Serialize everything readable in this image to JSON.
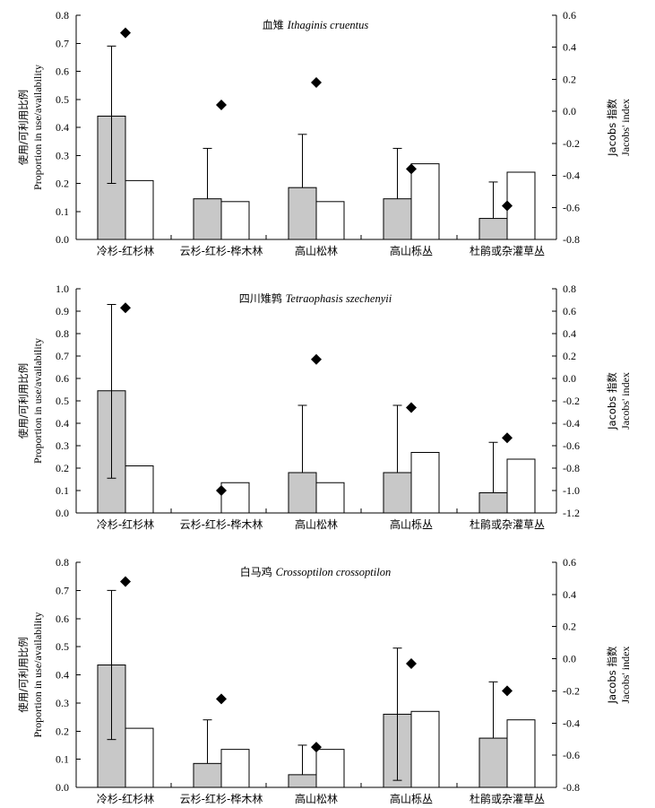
{
  "left_axis_label": {
    "cn": "使用/可利用比例",
    "en": "Proportion in use/availability"
  },
  "right_axis_label": {
    "cn": "Jacobs 指数",
    "en": "Jacobs' index"
  },
  "chart_data": [
    {
      "type": "bar",
      "title": {
        "cn": "血雉",
        "sci": "Ithaginis cruentus"
      },
      "categories": [
        "冷杉-红杉林",
        "云杉-红杉-桦木林",
        "高山松林",
        "高山栎丛",
        "杜鹃或杂灌草丛"
      ],
      "series": [
        {
          "name": "use",
          "values": [
            0.44,
            0.145,
            0.185,
            0.145,
            0.075
          ]
        },
        {
          "name": "availability",
          "values": [
            0.21,
            0.135,
            0.135,
            0.27,
            0.24
          ]
        },
        {
          "name": "use_error_upper",
          "values": [
            0.69,
            0.325,
            0.375,
            0.325,
            0.205
          ]
        },
        {
          "name": "use_error_lower",
          "values": [
            0.2,
            null,
            null,
            null,
            null
          ]
        },
        {
          "name": "Jacobs' index",
          "axis": "right",
          "values": [
            0.49,
            0.04,
            0.18,
            -0.36,
            -0.59
          ]
        }
      ],
      "ylim": [
        0,
        0.8
      ],
      "yticks": [
        "0.0",
        "0.1",
        "0.2",
        "0.3",
        "0.4",
        "0.5",
        "0.6",
        "0.7",
        "0.8"
      ],
      "y2lim": [
        -0.8,
        0.6
      ],
      "y2ticks": [
        "0.6",
        "0.4",
        "0.2",
        "0.0",
        "-0.2",
        "-0.4",
        "-0.6",
        "-0.8"
      ]
    },
    {
      "type": "bar",
      "title": {
        "cn": "四川雉鹑",
        "sci": "Tetraophasis szechenyii"
      },
      "categories": [
        "冷杉-红杉林",
        "云杉-红杉-桦木林",
        "高山松林",
        "高山栎丛",
        "杜鹃或杂灌草丛"
      ],
      "series": [
        {
          "name": "use",
          "values": [
            0.545,
            0,
            0.18,
            0.18,
            0.09
          ]
        },
        {
          "name": "availability",
          "values": [
            0.21,
            0.135,
            0.135,
            0.27,
            0.24
          ]
        },
        {
          "name": "use_error_upper",
          "values": [
            0.93,
            null,
            0.48,
            0.48,
            0.315
          ]
        },
        {
          "name": "use_error_lower",
          "values": [
            0.155,
            null,
            null,
            null,
            null
          ]
        },
        {
          "name": "Jacobs' index",
          "axis": "right",
          "values": [
            0.63,
            -1.0,
            0.17,
            -0.26,
            -0.53
          ]
        }
      ],
      "ylim": [
        0,
        1.0
      ],
      "yticks": [
        "0.0",
        "0.1",
        "0.2",
        "0.3",
        "0.4",
        "0.5",
        "0.6",
        "0.7",
        "0.8",
        "0.9",
        "1.0"
      ],
      "y2lim": [
        -1.2,
        0.8
      ],
      "y2ticks": [
        "0.8",
        "0.6",
        "0.4",
        "0.2",
        "0.0",
        "-0.2",
        "-0.4",
        "-0.6",
        "-0.8",
        "-1.0",
        "-1.2"
      ]
    },
    {
      "type": "bar",
      "title": {
        "cn": "白马鸡",
        "sci": "Crossoptilon crossoptilon"
      },
      "categories": [
        "冷杉-红杉林",
        "云杉-红杉-桦木林",
        "高山松林",
        "高山栎丛",
        "杜鹃或杂灌草丛"
      ],
      "series": [
        {
          "name": "use",
          "values": [
            0.435,
            0.085,
            0.045,
            0.26,
            0.175
          ]
        },
        {
          "name": "availability",
          "values": [
            0.21,
            0.135,
            0.135,
            0.27,
            0.24
          ]
        },
        {
          "name": "use_error_upper",
          "values": [
            0.7,
            0.24,
            0.15,
            0.495,
            0.375
          ]
        },
        {
          "name": "use_error_lower",
          "values": [
            0.17,
            null,
            null,
            0.025,
            null
          ]
        },
        {
          "name": "Jacobs' index",
          "axis": "right",
          "values": [
            0.48,
            -0.25,
            -0.55,
            -0.03,
            -0.2
          ]
        }
      ],
      "ylim": [
        0,
        0.8
      ],
      "yticks": [
        "0.0",
        "0.1",
        "0.2",
        "0.3",
        "0.4",
        "0.5",
        "0.6",
        "0.7",
        "0.8"
      ],
      "y2lim": [
        -0.8,
        0.6
      ],
      "y2ticks": [
        "0.6",
        "0.4",
        "0.2",
        "0.0",
        "-0.2",
        "-0.4",
        "-0.6",
        "-0.8"
      ]
    }
  ]
}
